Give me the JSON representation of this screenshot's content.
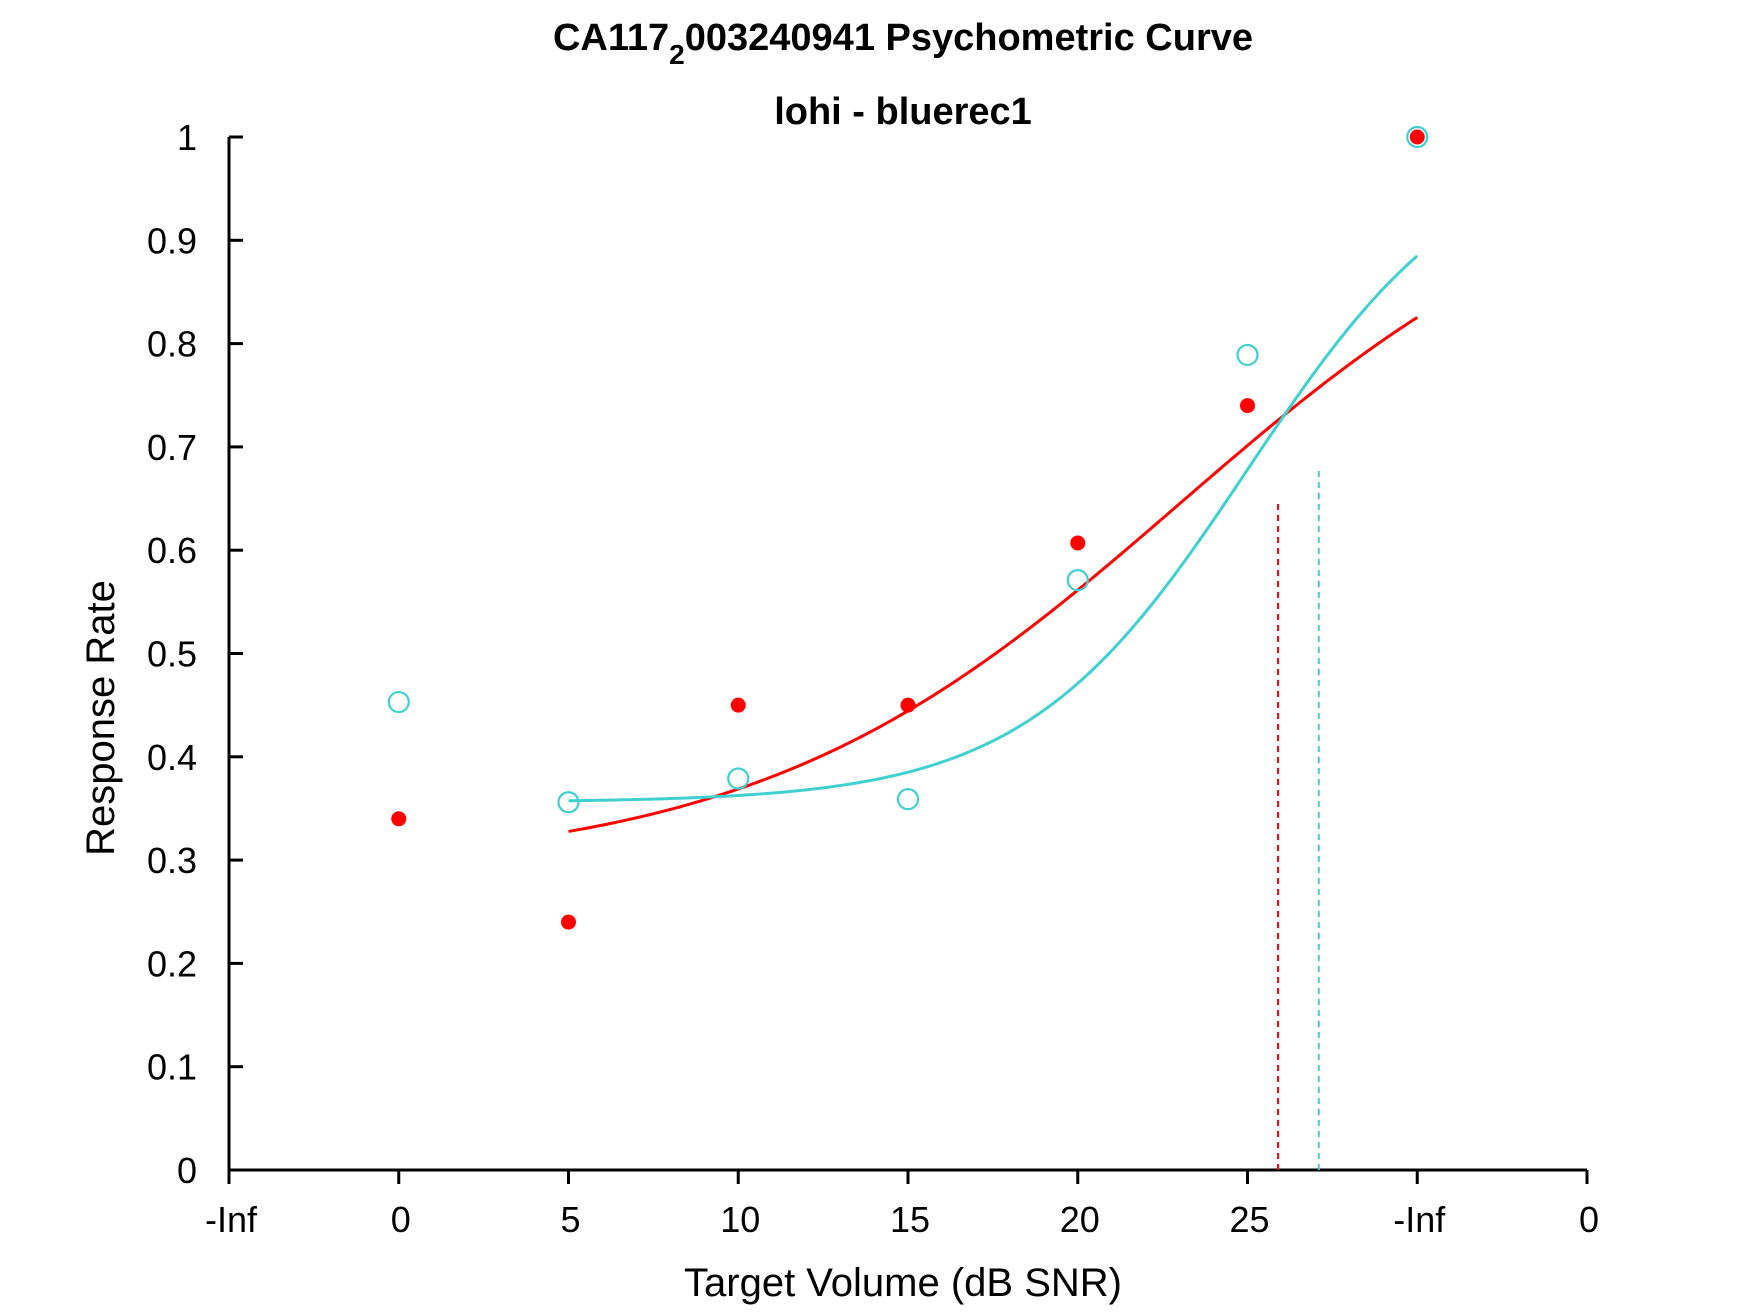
{
  "chart_data": {
    "type": "scatter",
    "title": {
      "main": "CA117",
      "subscript": "2",
      "rest": "003240941 Psychometric Curve"
    },
    "subtitle": "lohi - bluerec1",
    "xlabel": "Target Volume (dB SNR)",
    "ylabel": "Response Rate",
    "ylim": [
      0,
      1
    ],
    "xlim": [
      -10,
      30
    ],
    "x_tick_values": [
      -10,
      -5,
      0,
      5,
      10,
      15,
      20,
      25,
      30
    ],
    "x_tick_labels": [
      "-Inf",
      "0",
      "5",
      "10",
      "15",
      "20",
      "25",
      "-Inf",
      "0"
    ],
    "y_tick_values": [
      0,
      0.1,
      0.2,
      0.3,
      0.4,
      0.5,
      0.6,
      0.7,
      0.8,
      0.9,
      1
    ],
    "y_tick_labels": [
      "0",
      "0.1",
      "0.2",
      "0.3",
      "0.4",
      "0.5",
      "0.6",
      "0.7",
      "0.8",
      "0.9",
      "1"
    ],
    "grid": false,
    "series": [
      {
        "color": "#ff0000",
        "marker": "filled-circle",
        "points": [
          {
            "x": -5,
            "y": 0.34
          },
          {
            "x": 0,
            "y": 0.24
          },
          {
            "x": 5,
            "y": 0.45
          },
          {
            "x": 10,
            "y": 0.45
          },
          {
            "x": 15,
            "y": 0.607
          },
          {
            "x": 20,
            "y": 0.74
          },
          {
            "x": 25,
            "y": 1.0
          }
        ],
        "fit": {
          "x_start": 0,
          "x_end": 25,
          "lower": 0.29,
          "upper": 1.0,
          "mid": 18.0,
          "slope": 0.16
        },
        "threshold": {
          "x": 20.9,
          "y": 0.645
        }
      },
      {
        "color": "#40d0d0",
        "marker": "open-circle",
        "points": [
          {
            "x": -5,
            "y": 0.453
          },
          {
            "x": 0,
            "y": 0.356
          },
          {
            "x": 5,
            "y": 0.379
          },
          {
            "x": 10,
            "y": 0.359
          },
          {
            "x": 15,
            "y": 0.571
          },
          {
            "x": 20,
            "y": 0.789
          },
          {
            "x": 25,
            "y": 1.0
          }
        ],
        "fit": {
          "x_start": 0,
          "x_end": 25,
          "lower": 0.356,
          "upper": 1.0,
          "mid": 20.0,
          "slope": 0.305
        },
        "threshold": {
          "x": 22.1,
          "y": 0.678
        }
      }
    ]
  }
}
